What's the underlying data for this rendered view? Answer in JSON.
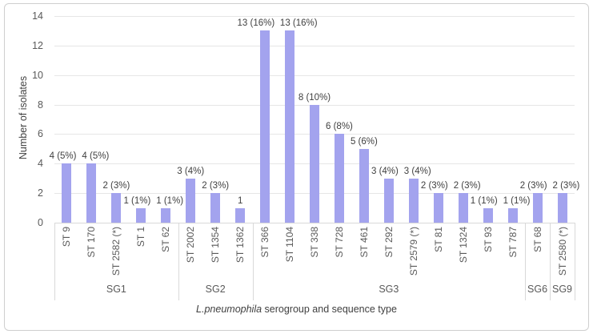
{
  "chart_data": {
    "type": "bar",
    "title": "",
    "ylabel": "Number of isolates",
    "xlabel_italic": "L.pneumophila",
    "xlabel_rest": " serogroup and sequence type",
    "ylim": [
      0,
      14
    ],
    "yticks": [
      0,
      2,
      4,
      6,
      8,
      10,
      12,
      14
    ],
    "grid": true,
    "legend": false,
    "colors": {
      "bar": "#a3a3ee",
      "gridline": "#e6e6e6",
      "axis_line": "#d9d9d9",
      "tick_text": "#595959",
      "label_text": "#404040"
    },
    "groups": [
      {
        "label": "SG1",
        "bars": [
          {
            "category": "ST 9",
            "value": 4,
            "data_label": "4 (5%)"
          },
          {
            "category": "ST 170",
            "value": 4,
            "data_label": "4 (5%)"
          },
          {
            "category": "ST 2582 (*)",
            "value": 2,
            "data_label": "2 (3%)"
          },
          {
            "category": "ST 1",
            "value": 1,
            "data_label": "1 (1%)"
          },
          {
            "category": "ST 62",
            "value": 1,
            "data_label": "1 (1%)"
          }
        ]
      },
      {
        "label": "SG2",
        "bars": [
          {
            "category": "ST 2002",
            "value": 3,
            "data_label": "3 (4%)"
          },
          {
            "category": "ST 1354",
            "value": 2,
            "data_label": "2 (3%)"
          },
          {
            "category": "ST 1362",
            "value": 1,
            "data_label": "1"
          }
        ]
      },
      {
        "label": "SG3",
        "bars": [
          {
            "category": "ST 366",
            "value": 13,
            "data_label": "13 (16%)"
          },
          {
            "category": "ST 1104",
            "value": 13,
            "data_label": "13 (16%)"
          },
          {
            "category": "ST 338",
            "value": 8,
            "data_label": "8 (10%)"
          },
          {
            "category": "ST 728",
            "value": 6,
            "data_label": "6 (8%)"
          },
          {
            "category": "ST 461",
            "value": 5,
            "data_label": "5 (6%)"
          },
          {
            "category": "ST 292",
            "value": 3,
            "data_label": "3 (4%)"
          },
          {
            "category": "ST 2579 (*)",
            "value": 3,
            "data_label": "3 (4%)"
          },
          {
            "category": "ST 81",
            "value": 2,
            "data_label": "2 (3%)"
          },
          {
            "category": "ST 1324",
            "value": 2,
            "data_label": "2 (3%)"
          },
          {
            "category": "ST 93",
            "value": 1,
            "data_label": "1 (1%)"
          },
          {
            "category": "ST 787",
            "value": 1,
            "data_label": "1 (1%)"
          }
        ]
      },
      {
        "label": "SG6",
        "bars": [
          {
            "category": "ST 68",
            "value": 2,
            "data_label": "2 (3%)"
          }
        ]
      },
      {
        "label": "SG9",
        "bars": [
          {
            "category": "ST 2580 (*)",
            "value": 2,
            "data_label": "2 (3%)"
          }
        ]
      }
    ]
  }
}
